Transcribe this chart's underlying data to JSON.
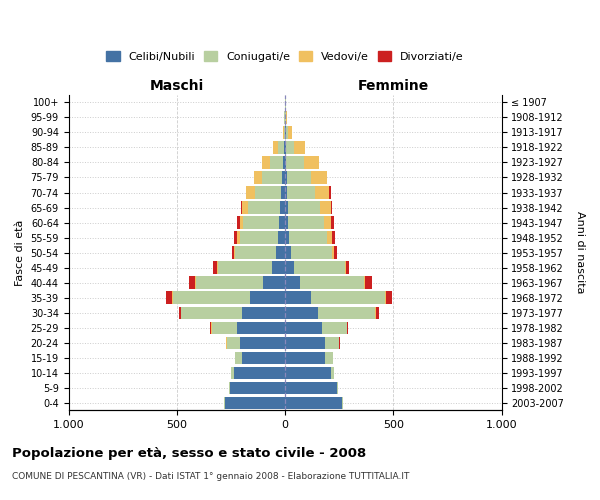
{
  "age_groups": [
    "0-4",
    "5-9",
    "10-14",
    "15-19",
    "20-24",
    "25-29",
    "30-34",
    "35-39",
    "40-44",
    "45-49",
    "50-54",
    "55-59",
    "60-64",
    "65-69",
    "70-74",
    "75-79",
    "80-84",
    "85-89",
    "90-94",
    "95-99",
    "100+"
  ],
  "birth_years": [
    "2003-2007",
    "1998-2002",
    "1993-1997",
    "1988-1992",
    "1983-1987",
    "1978-1982",
    "1973-1977",
    "1968-1972",
    "1963-1967",
    "1958-1962",
    "1953-1957",
    "1948-1952",
    "1943-1947",
    "1938-1942",
    "1933-1937",
    "1928-1932",
    "1923-1927",
    "1918-1922",
    "1913-1917",
    "1908-1912",
    "≤ 1907"
  ],
  "colors": {
    "celibe": "#4472a4",
    "coniugato": "#b8cfa0",
    "vedovo": "#f0c060",
    "divorziato": "#cc2020"
  },
  "males": {
    "celibe": [
      280,
      255,
      235,
      200,
      210,
      220,
      200,
      160,
      100,
      60,
      40,
      35,
      30,
      25,
      20,
      15,
      10,
      5,
      2,
      1,
      1
    ],
    "coniugato": [
      3,
      5,
      15,
      30,
      60,
      120,
      280,
      360,
      310,
      250,
      190,
      175,
      165,
      145,
      120,
      90,
      60,
      30,
      5,
      2,
      1
    ],
    "vedovo": [
      0,
      0,
      0,
      0,
      1,
      1,
      2,
      3,
      5,
      5,
      5,
      10,
      15,
      30,
      40,
      40,
      35,
      20,
      5,
      1,
      0
    ],
    "divorziato": [
      0,
      0,
      0,
      2,
      3,
      5,
      10,
      25,
      30,
      20,
      10,
      15,
      10,
      5,
      0,
      0,
      0,
      0,
      0,
      0,
      0
    ]
  },
  "females": {
    "nubile": [
      265,
      240,
      210,
      185,
      185,
      170,
      150,
      120,
      70,
      40,
      25,
      20,
      15,
      12,
      10,
      8,
      5,
      3,
      2,
      1,
      1
    ],
    "coniugata": [
      3,
      5,
      15,
      35,
      65,
      115,
      265,
      340,
      295,
      235,
      190,
      175,
      165,
      150,
      130,
      110,
      80,
      40,
      10,
      3,
      1
    ],
    "vedova": [
      0,
      0,
      0,
      1,
      1,
      2,
      3,
      5,
      5,
      5,
      10,
      20,
      30,
      50,
      65,
      75,
      70,
      50,
      20,
      5,
      1
    ],
    "divorziata": [
      0,
      0,
      0,
      2,
      3,
      5,
      15,
      30,
      30,
      15,
      15,
      15,
      15,
      5,
      5,
      0,
      0,
      0,
      0,
      0,
      0
    ]
  },
  "title": "Popolazione per età, sesso e stato civile - 2008",
  "subtitle": "COMUNE DI PESCANTINA (VR) - Dati ISTAT 1° gennaio 2008 - Elaborazione TUTTITALIA.IT",
  "xlabel_left": "Maschi",
  "xlabel_right": "Femmine",
  "ylabel_left": "Fasce di età",
  "ylabel_right": "Anni di nascita",
  "xlim": 1000,
  "background_color": "#ffffff",
  "grid_color": "#cccccc",
  "legend_labels": [
    "Celibi/Nubili",
    "Coniugati/e",
    "Vedovi/e",
    "Divorziati/e"
  ]
}
